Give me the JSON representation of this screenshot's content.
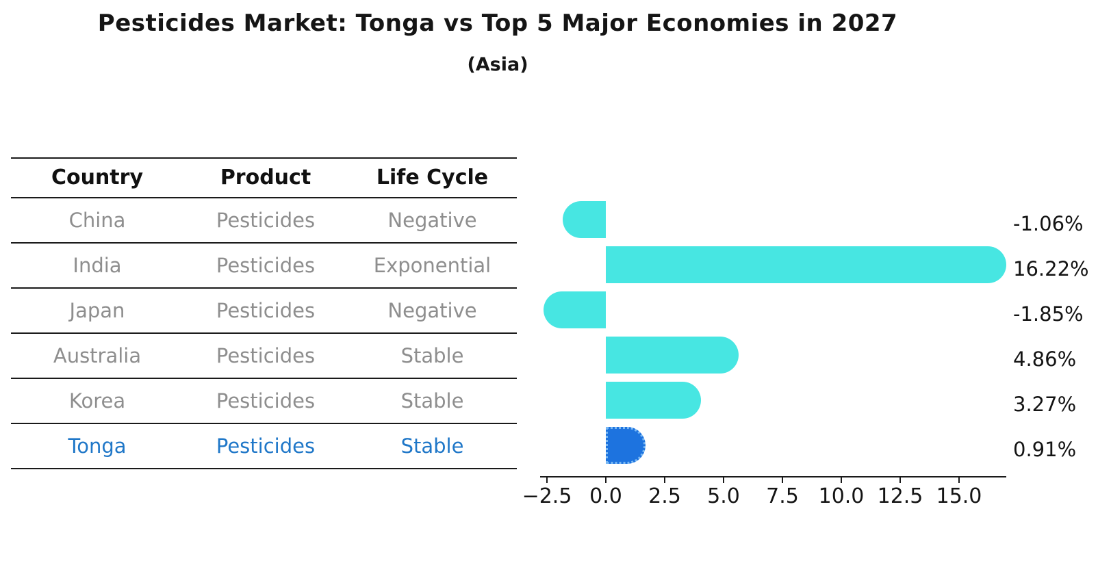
{
  "title": "Pesticides Market: Tonga vs Top 5 Major Economies in 2027",
  "subtitle": "(Asia)",
  "table": {
    "headers": [
      "Country",
      "Product",
      "Life Cycle"
    ],
    "rows": [
      {
        "country": "China",
        "product": "Pesticides",
        "life_cycle": "Negative",
        "highlight": false
      },
      {
        "country": "India",
        "product": "Pesticides",
        "life_cycle": "Exponential",
        "highlight": false
      },
      {
        "country": "Japan",
        "product": "Pesticides",
        "life_cycle": "Negative",
        "highlight": false
      },
      {
        "country": "Australia",
        "product": "Pesticides",
        "life_cycle": "Stable",
        "highlight": false
      },
      {
        "country": "Korea",
        "product": "Pesticides",
        "life_cycle": "Stable",
        "highlight": false
      },
      {
        "country": "Tonga",
        "product": "Pesticides",
        "life_cycle": "Stable",
        "highlight": true
      }
    ]
  },
  "chart_data": {
    "type": "bar",
    "orientation": "horizontal",
    "title": "Pesticides Market: Tonga vs Top 5 Major Economies in 2027",
    "subtitle": "(Asia)",
    "categories": [
      "China",
      "India",
      "Japan",
      "Australia",
      "Korea",
      "Tonga"
    ],
    "values": [
      -1.06,
      16.22,
      -1.85,
      4.86,
      3.27,
      0.91
    ],
    "value_labels": [
      "-1.06%",
      "16.22%",
      "-1.85%",
      "4.86%",
      "3.27%",
      "0.91%"
    ],
    "xtick_values": [
      -2.5,
      0.0,
      2.5,
      5.0,
      7.5,
      10.0,
      12.5,
      15.0
    ],
    "xtick_labels": [
      "−2.5",
      "0.0",
      "2.5",
      "5.0",
      "7.5",
      "10.0",
      "12.5",
      "15.0"
    ],
    "xlim": [
      -2.79,
      17.0
    ],
    "grid": false,
    "legend": false,
    "bar_color": "#47e6e2",
    "highlight_bar_color": "#1d73df",
    "highlight_border_color": "#79b8f3",
    "highlight_text_color": "#1F77C8",
    "axis_color": "#1a1a1a"
  }
}
